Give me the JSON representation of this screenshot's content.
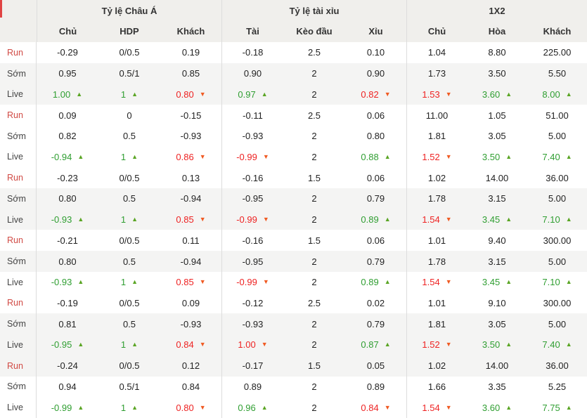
{
  "header": {
    "groups": [
      {
        "title": "Tỷ lệ Châu Á",
        "cols": [
          "Chủ",
          "HDP",
          "Khách"
        ]
      },
      {
        "title": "Tỷ lệ tài xỉu",
        "cols": [
          "Tài",
          "Kèo đầu",
          "Xỉu"
        ]
      },
      {
        "title": "1X2",
        "cols": [
          "Chủ",
          "Hòa",
          "Khách"
        ]
      }
    ]
  },
  "colors": {
    "value_green": "#2f9e31",
    "value_red": "#ee2222",
    "arrow_green": "#5aa524",
    "arrow_red": "#f05a22",
    "run_label_red": "#d14b45",
    "header_bg": "#f0efec",
    "shaded_row_bg": "#f4f4f3",
    "separator": "#dddddd",
    "accent_marker": "#e04343"
  },
  "rows": [
    {
      "label": "Run",
      "shaded": false,
      "cells": [
        {
          "t": "-0.29"
        },
        {
          "t": "0/0.5"
        },
        {
          "t": "0.19"
        },
        {
          "t": "-0.18"
        },
        {
          "t": "2.5"
        },
        {
          "t": "0.10"
        },
        {
          "t": "1.04"
        },
        {
          "t": "8.80"
        },
        {
          "t": "225.00"
        }
      ]
    },
    {
      "label": "Sớm",
      "shaded": true,
      "cells": [
        {
          "t": "0.95"
        },
        {
          "t": "0.5/1"
        },
        {
          "t": "0.85"
        },
        {
          "t": "0.90"
        },
        {
          "t": "2"
        },
        {
          "t": "0.90"
        },
        {
          "t": "1.73"
        },
        {
          "t": "3.50"
        },
        {
          "t": "5.50"
        }
      ]
    },
    {
      "label": "Live",
      "shaded": true,
      "cells": [
        {
          "t": "1.00",
          "tr": "up"
        },
        {
          "t": "1",
          "tr": "up"
        },
        {
          "t": "0.80",
          "tr": "down"
        },
        {
          "t": "0.97",
          "tr": "up"
        },
        {
          "t": "2"
        },
        {
          "t": "0.82",
          "tr": "down"
        },
        {
          "t": "1.53",
          "tr": "down"
        },
        {
          "t": "3.60",
          "tr": "up"
        },
        {
          "t": "8.00",
          "tr": "up"
        }
      ]
    },
    {
      "label": "Run",
      "shaded": false,
      "cells": [
        {
          "t": "0.09"
        },
        {
          "t": "0"
        },
        {
          "t": "-0.15"
        },
        {
          "t": "-0.11"
        },
        {
          "t": "2.5"
        },
        {
          "t": "0.06"
        },
        {
          "t": "11.00"
        },
        {
          "t": "1.05"
        },
        {
          "t": "51.00"
        }
      ]
    },
    {
      "label": "Sớm",
      "shaded": false,
      "cells": [
        {
          "t": "0.82"
        },
        {
          "t": "0.5"
        },
        {
          "t": "-0.93"
        },
        {
          "t": "-0.93"
        },
        {
          "t": "2"
        },
        {
          "t": "0.80"
        },
        {
          "t": "1.81"
        },
        {
          "t": "3.05"
        },
        {
          "t": "5.00"
        }
      ]
    },
    {
      "label": "Live",
      "shaded": false,
      "cells": [
        {
          "t": "-0.94",
          "tr": "up"
        },
        {
          "t": "1",
          "tr": "up"
        },
        {
          "t": "0.86",
          "tr": "down"
        },
        {
          "t": "-0.99",
          "tr": "down"
        },
        {
          "t": "2"
        },
        {
          "t": "0.88",
          "tr": "up"
        },
        {
          "t": "1.52",
          "tr": "down"
        },
        {
          "t": "3.50",
          "tr": "up"
        },
        {
          "t": "7.40",
          "tr": "up"
        }
      ]
    },
    {
      "label": "Run",
      "shaded": false,
      "cells": [
        {
          "t": "-0.23"
        },
        {
          "t": "0/0.5"
        },
        {
          "t": "0.13"
        },
        {
          "t": "-0.16"
        },
        {
          "t": "1.5"
        },
        {
          "t": "0.06"
        },
        {
          "t": "1.02"
        },
        {
          "t": "14.00"
        },
        {
          "t": "36.00"
        }
      ]
    },
    {
      "label": "Sớm",
      "shaded": true,
      "cells": [
        {
          "t": "0.80"
        },
        {
          "t": "0.5"
        },
        {
          "t": "-0.94"
        },
        {
          "t": "-0.95"
        },
        {
          "t": "2"
        },
        {
          "t": "0.79"
        },
        {
          "t": "1.78"
        },
        {
          "t": "3.15"
        },
        {
          "t": "5.00"
        }
      ]
    },
    {
      "label": "Live",
      "shaded": true,
      "cells": [
        {
          "t": "-0.93",
          "tr": "up"
        },
        {
          "t": "1",
          "tr": "up"
        },
        {
          "t": "0.85",
          "tr": "down"
        },
        {
          "t": "-0.99",
          "tr": "down"
        },
        {
          "t": "2"
        },
        {
          "t": "0.89",
          "tr": "up"
        },
        {
          "t": "1.54",
          "tr": "down"
        },
        {
          "t": "3.45",
          "tr": "up"
        },
        {
          "t": "7.10",
          "tr": "up"
        }
      ]
    },
    {
      "label": "Run",
      "shaded": false,
      "cells": [
        {
          "t": "-0.21"
        },
        {
          "t": "0/0.5"
        },
        {
          "t": "0.11"
        },
        {
          "t": "-0.16"
        },
        {
          "t": "1.5"
        },
        {
          "t": "0.06"
        },
        {
          "t": "1.01"
        },
        {
          "t": "9.40"
        },
        {
          "t": "300.00"
        }
      ]
    },
    {
      "label": "Sớm",
      "shaded": true,
      "cells": [
        {
          "t": "0.80"
        },
        {
          "t": "0.5"
        },
        {
          "t": "-0.94"
        },
        {
          "t": "-0.95"
        },
        {
          "t": "2"
        },
        {
          "t": "0.79"
        },
        {
          "t": "1.78"
        },
        {
          "t": "3.15"
        },
        {
          "t": "5.00"
        }
      ]
    },
    {
      "label": "Live",
      "shaded": false,
      "cells": [
        {
          "t": "-0.93",
          "tr": "up"
        },
        {
          "t": "1",
          "tr": "up"
        },
        {
          "t": "0.85",
          "tr": "down"
        },
        {
          "t": "-0.99",
          "tr": "down"
        },
        {
          "t": "2"
        },
        {
          "t": "0.89",
          "tr": "up"
        },
        {
          "t": "1.54",
          "tr": "down"
        },
        {
          "t": "3.45",
          "tr": "up"
        },
        {
          "t": "7.10",
          "tr": "up"
        }
      ]
    },
    {
      "label": "Run",
      "shaded": false,
      "cells": [
        {
          "t": "-0.19"
        },
        {
          "t": "0/0.5"
        },
        {
          "t": "0.09"
        },
        {
          "t": "-0.12"
        },
        {
          "t": "2.5"
        },
        {
          "t": "0.02"
        },
        {
          "t": "1.01"
        },
        {
          "t": "9.10"
        },
        {
          "t": "300.00"
        }
      ]
    },
    {
      "label": "Sớm",
      "shaded": true,
      "cells": [
        {
          "t": "0.81"
        },
        {
          "t": "0.5"
        },
        {
          "t": "-0.93"
        },
        {
          "t": "-0.93"
        },
        {
          "t": "2"
        },
        {
          "t": "0.79"
        },
        {
          "t": "1.81"
        },
        {
          "t": "3.05"
        },
        {
          "t": "5.00"
        }
      ]
    },
    {
      "label": "Live",
      "shaded": true,
      "cells": [
        {
          "t": "-0.95",
          "tr": "up"
        },
        {
          "t": "1",
          "tr": "up"
        },
        {
          "t": "0.84",
          "tr": "down"
        },
        {
          "t": "1.00",
          "tr": "down"
        },
        {
          "t": "2"
        },
        {
          "t": "0.87",
          "tr": "up"
        },
        {
          "t": "1.52",
          "tr": "down"
        },
        {
          "t": "3.50",
          "tr": "up"
        },
        {
          "t": "7.40",
          "tr": "up"
        }
      ]
    },
    {
      "label": "Run",
      "shaded": true,
      "cells": [
        {
          "t": "-0.24"
        },
        {
          "t": "0/0.5"
        },
        {
          "t": "0.12"
        },
        {
          "t": "-0.17"
        },
        {
          "t": "1.5"
        },
        {
          "t": "0.05"
        },
        {
          "t": "1.02"
        },
        {
          "t": "14.00"
        },
        {
          "t": "36.00"
        }
      ]
    },
    {
      "label": "Sớm",
      "shaded": false,
      "cells": [
        {
          "t": "0.94"
        },
        {
          "t": "0.5/1"
        },
        {
          "t": "0.84"
        },
        {
          "t": "0.89"
        },
        {
          "t": "2"
        },
        {
          "t": "0.89"
        },
        {
          "t": "1.66"
        },
        {
          "t": "3.35"
        },
        {
          "t": "5.25"
        }
      ]
    },
    {
      "label": "Live",
      "shaded": false,
      "cells": [
        {
          "t": "-0.99",
          "tr": "up"
        },
        {
          "t": "1",
          "tr": "up"
        },
        {
          "t": "0.80",
          "tr": "down"
        },
        {
          "t": "0.96",
          "tr": "up"
        },
        {
          "t": "2"
        },
        {
          "t": "0.84",
          "tr": "down"
        },
        {
          "t": "1.54",
          "tr": "down"
        },
        {
          "t": "3.60",
          "tr": "up"
        },
        {
          "t": "7.75",
          "tr": "up"
        }
      ]
    }
  ]
}
